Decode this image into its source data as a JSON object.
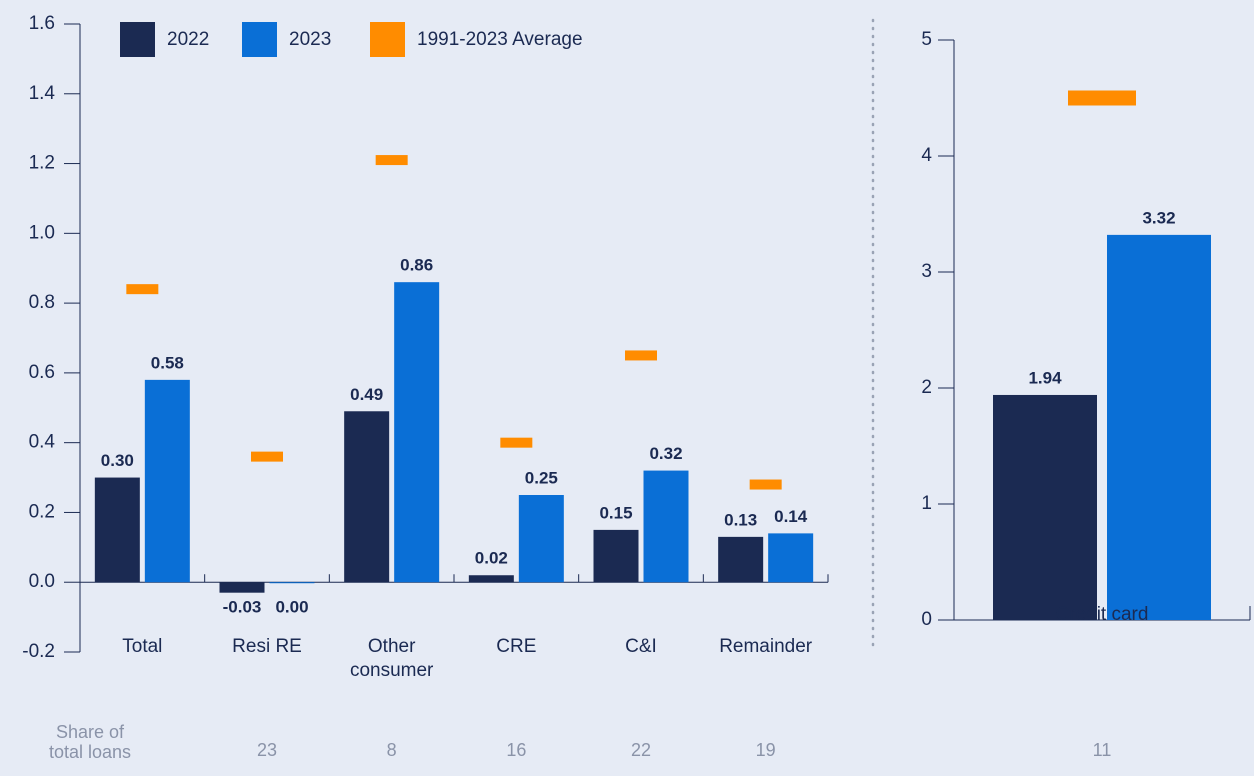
{
  "chart_data": [
    {
      "type": "bar",
      "categories": [
        "Total",
        "Resi RE",
        "Other consumer",
        "CRE",
        "C&I",
        "Remainder"
      ],
      "series": [
        {
          "name": "2022",
          "color": "#1b2a52",
          "values": [
            0.3,
            -0.03,
            0.49,
            0.02,
            0.15,
            0.13
          ],
          "value_labels": [
            "0.30",
            "-0.03",
            "0.49",
            "0.02",
            "0.15",
            "0.13"
          ]
        },
        {
          "name": "2023",
          "color": "#0a6fd6",
          "values": [
            0.58,
            0.0,
            0.86,
            0.25,
            0.32,
            0.14
          ],
          "value_labels": [
            "0.58",
            "0.00",
            "0.86",
            "0.25",
            "0.32",
            "0.14"
          ]
        },
        {
          "name": "1991-2023 Average",
          "color": "#ff8c00",
          "values": [
            0.84,
            0.36,
            1.21,
            0.4,
            0.65,
            0.28
          ]
        }
      ],
      "ylim": [
        -0.2,
        1.6
      ],
      "yticks": [
        -0.2,
        {
          "value": 0,
          "label": "0.0"
        },
        0.2,
        0.4,
        0.6,
        0.8,
        {
          "value": 1,
          "label": "1.0"
        },
        1.2,
        1.4,
        1.6
      ],
      "share_label": "Share of total loans",
      "shares": [
        null,
        23,
        8,
        16,
        22,
        19
      ],
      "legend": "top-left"
    },
    {
      "type": "bar",
      "categories": [
        "Credit card"
      ],
      "series": [
        {
          "name": "2022",
          "color": "#1b2a52",
          "values": [
            1.94
          ]
        },
        {
          "name": "2023",
          "color": "#0a6fd6",
          "values": [
            3.32
          ]
        },
        {
          "name": "1991-2023 Average",
          "color": "#ff8c00",
          "values": [
            4.5
          ]
        }
      ],
      "ylim": [
        0,
        5
      ],
      "yticks": [
        0,
        1,
        2,
        3,
        4,
        5
      ],
      "shares": [
        11
      ]
    }
  ]
}
